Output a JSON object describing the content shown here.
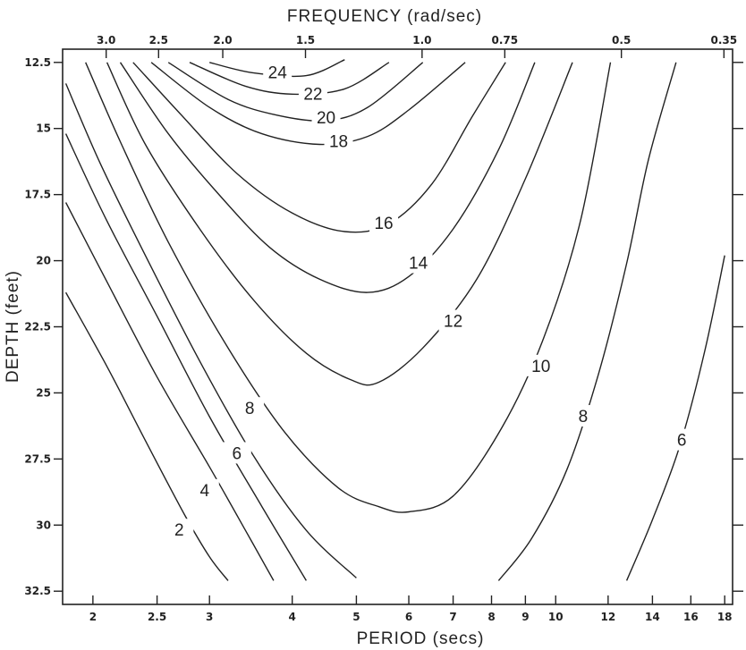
{
  "chart_data": {
    "type": "line",
    "title": "",
    "top_axis": {
      "label": "FREQUENCY  (rad/sec)",
      "ticks": [
        {
          "label": "3.0",
          "value": 3.0
        },
        {
          "label": "2.5",
          "value": 2.5
        },
        {
          "label": "2.0",
          "value": 2.0
        },
        {
          "label": "1.5",
          "value": 1.5
        },
        {
          "label": "1.0",
          "value": 1.0
        },
        {
          "label": "0.75",
          "value": 0.75
        },
        {
          "label": "0.5",
          "value": 0.5
        },
        {
          "label": "0.35",
          "value": 0.35
        }
      ]
    },
    "x_axis": {
      "label": "PERIOD  (secs)",
      "scale": "log",
      "range": [
        1.8,
        18.5
      ],
      "ticks": [
        {
          "label": "2",
          "value": 2
        },
        {
          "label": "2.5",
          "value": 2.5
        },
        {
          "label": "3",
          "value": 3
        },
        {
          "label": "4",
          "value": 4
        },
        {
          "label": "5",
          "value": 5
        },
        {
          "label": "6",
          "value": 6
        },
        {
          "label": "7",
          "value": 7
        },
        {
          "label": "8",
          "value": 8
        },
        {
          "label": "9",
          "value": 9
        },
        {
          "label": "10",
          "value": 10
        },
        {
          "label": "12",
          "value": 12
        },
        {
          "label": "14",
          "value": 14
        },
        {
          "label": "16",
          "value": 16
        },
        {
          "label": "18",
          "value": 18
        }
      ]
    },
    "y_axis": {
      "label": "DEPTH  (feet)",
      "range": [
        12.0,
        33.0
      ],
      "inverted": true,
      "ticks": [
        {
          "label": "12.5",
          "value": 12.5
        },
        {
          "label": "15",
          "value": 15
        },
        {
          "label": "17.5",
          "value": 17.5
        },
        {
          "label": "20",
          "value": 20
        },
        {
          "label": "22.5",
          "value": 22.5
        },
        {
          "label": "25",
          "value": 25
        },
        {
          "label": "27.5",
          "value": 27.5
        },
        {
          "label": "30",
          "value": 30
        },
        {
          "label": "32.5",
          "value": 32.5
        }
      ]
    },
    "series": [
      {
        "name": "24",
        "label_at": [
          3.8,
          12.9
        ],
        "points": [
          [
            3.0,
            12.5
          ],
          [
            3.5,
            12.9
          ],
          [
            4.2,
            13.0
          ],
          [
            4.8,
            12.4
          ]
        ]
      },
      {
        "name": "22",
        "label_at": [
          4.3,
          13.7
        ],
        "points": [
          [
            2.8,
            12.5
          ],
          [
            3.4,
            13.4
          ],
          [
            4.0,
            13.7
          ],
          [
            4.8,
            13.5
          ],
          [
            5.6,
            12.5
          ]
        ]
      },
      {
        "name": "20",
        "label_at": [
          4.5,
          14.6
        ],
        "points": [
          [
            2.6,
            12.5
          ],
          [
            3.2,
            13.9
          ],
          [
            3.8,
            14.5
          ],
          [
            4.5,
            14.7
          ],
          [
            5.2,
            14.2
          ],
          [
            6.3,
            12.5
          ]
        ]
      },
      {
        "name": "18",
        "label_at": [
          4.7,
          15.5
        ],
        "points": [
          [
            2.45,
            12.5
          ],
          [
            3.0,
            14.2
          ],
          [
            3.6,
            15.2
          ],
          [
            4.4,
            15.6
          ],
          [
            5.2,
            15.3
          ],
          [
            6.0,
            14.3
          ],
          [
            7.3,
            12.5
          ]
        ]
      },
      {
        "name": "16",
        "label_at": [
          5.5,
          18.6
        ],
        "points": [
          [
            2.3,
            12.5
          ],
          [
            2.7,
            14.4
          ],
          [
            3.3,
            16.7
          ],
          [
            4.0,
            18.2
          ],
          [
            4.8,
            18.9
          ],
          [
            5.6,
            18.6
          ],
          [
            6.5,
            17.1
          ],
          [
            7.5,
            14.5
          ],
          [
            8.4,
            12.5
          ]
        ]
      },
      {
        "name": "14",
        "label_at": [
          6.2,
          20.1
        ],
        "points": [
          [
            2.2,
            12.5
          ],
          [
            2.6,
            15.2
          ],
          [
            3.1,
            17.5
          ],
          [
            3.7,
            19.5
          ],
          [
            4.4,
            20.7
          ],
          [
            5.2,
            21.2
          ],
          [
            6.0,
            20.6
          ],
          [
            7.0,
            18.8
          ],
          [
            8.2,
            15.8
          ],
          [
            9.3,
            12.5
          ]
        ]
      },
      {
        "name": "12",
        "label_at": [
          7.0,
          22.3
        ],
        "points": [
          [
            2.1,
            12.5
          ],
          [
            2.4,
            15.6
          ],
          [
            2.9,
            18.8
          ],
          [
            3.5,
            21.5
          ],
          [
            4.2,
            23.5
          ],
          [
            4.9,
            24.5
          ],
          [
            5.4,
            24.6
          ],
          [
            6.3,
            23.3
          ],
          [
            7.6,
            20.7
          ],
          [
            9.0,
            16.9
          ],
          [
            10.6,
            12.5
          ]
        ]
      },
      {
        "name": "10",
        "label_at": [
          9.5,
          24.0
        ],
        "points": [
          [
            1.95,
            12.5
          ],
          [
            2.2,
            15.5
          ],
          [
            2.6,
            19.3
          ],
          [
            3.2,
            23.3
          ],
          [
            3.9,
            26.5
          ],
          [
            4.7,
            28.6
          ],
          [
            5.4,
            29.3
          ],
          [
            6.0,
            29.5
          ],
          [
            7.0,
            28.9
          ],
          [
            8.3,
            26.3
          ],
          [
            9.6,
            22.9
          ],
          [
            10.9,
            18.5
          ],
          [
            12.1,
            12.5
          ]
        ]
      },
      {
        "name": "8",
        "label_at": [
          3.45,
          25.6
        ],
        "points": [
          [
            1.82,
            13.3
          ],
          [
            2.05,
            16.3
          ],
          [
            2.4,
            19.8
          ],
          [
            2.9,
            23.8
          ],
          [
            3.5,
            27.4
          ],
          [
            4.2,
            30.2
          ],
          [
            5.0,
            32.0
          ]
        ]
      },
      {
        "name": "8",
        "label_at": [
          11.0,
          25.9
        ],
        "points": [
          [
            8.2,
            32.1
          ],
          [
            9.2,
            30.5
          ],
          [
            10.4,
            27.9
          ],
          [
            11.6,
            24.3
          ],
          [
            12.8,
            20.1
          ],
          [
            13.8,
            16.2
          ],
          [
            15.2,
            12.5
          ]
        ]
      },
      {
        "name": "6",
        "label_at": [
          3.3,
          27.3
        ],
        "points": [
          [
            1.82,
            15.2
          ],
          [
            2.1,
            18.5
          ],
          [
            2.5,
            22.1
          ],
          [
            3.0,
            25.9
          ],
          [
            3.6,
            29.3
          ],
          [
            4.2,
            32.1
          ]
        ]
      },
      {
        "name": "6",
        "label_at": [
          15.5,
          26.8
        ],
        "points": [
          [
            12.8,
            32.1
          ],
          [
            14.0,
            29.8
          ],
          [
            15.4,
            27.0
          ],
          [
            16.8,
            23.4
          ],
          [
            18.0,
            19.8
          ]
        ]
      },
      {
        "name": "4",
        "label_at": [
          2.95,
          28.7
        ],
        "points": [
          [
            1.82,
            17.8
          ],
          [
            2.1,
            20.8
          ],
          [
            2.5,
            24.4
          ],
          [
            3.0,
            27.8
          ],
          [
            3.4,
            30.2
          ],
          [
            3.75,
            32.1
          ]
        ]
      },
      {
        "name": "2",
        "label_at": [
          2.7,
          30.2
        ],
        "points": [
          [
            1.82,
            21.2
          ],
          [
            2.1,
            24.0
          ],
          [
            2.4,
            26.8
          ],
          [
            2.75,
            29.6
          ],
          [
            3.0,
            31.2
          ],
          [
            3.2,
            32.1
          ]
        ]
      }
    ]
  }
}
